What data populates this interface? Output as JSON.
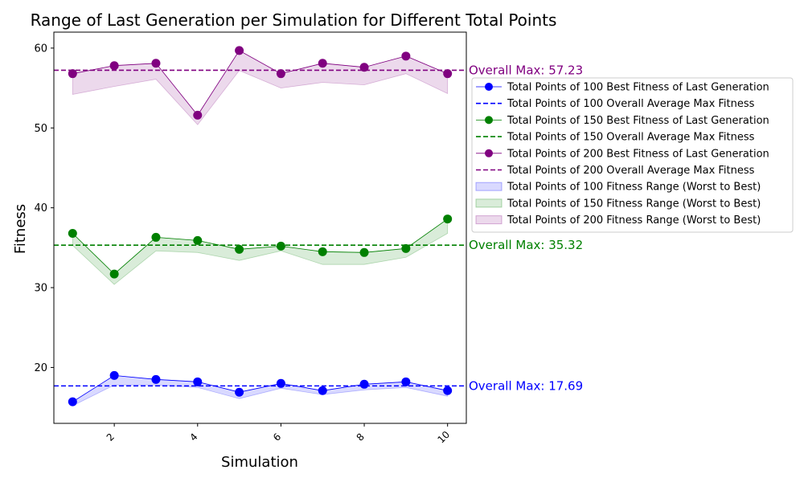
{
  "chart_data": {
    "type": "line",
    "title": "Range of Last Generation per Simulation for Different Total Points",
    "xlabel": "Simulation",
    "ylabel": "Fitness",
    "xlim": [
      0.55,
      10.45
    ],
    "ylim": [
      13.0,
      62.0
    ],
    "xticks": [
      2,
      4,
      6,
      8,
      10
    ],
    "yticks": [
      20,
      30,
      40,
      50,
      60
    ],
    "x": [
      1,
      2,
      3,
      4,
      5,
      6,
      7,
      8,
      9,
      10
    ],
    "grid": false,
    "legend_position": "right, outside plot",
    "series": [
      {
        "name": "Total Points of 100 Best Fitness of Last Generation",
        "color": "#0000ff",
        "best": [
          15.7,
          19.0,
          18.5,
          18.2,
          16.9,
          18.0,
          17.1,
          17.9,
          18.2,
          17.1
        ],
        "worst": [
          15.2,
          17.8,
          17.8,
          17.5,
          16.1,
          17.4,
          16.6,
          17.2,
          17.5,
          16.4
        ],
        "avg_label": "Total Points of 100 Overall Average Max Fitness",
        "avg": 17.69,
        "range_label": "Total Points of 100 Fitness Range (Worst to Best)",
        "annotation": "Overall Max: 17.69"
      },
      {
        "name": "Total Points of 150 Best Fitness of Last Generation",
        "color": "#008000",
        "best": [
          36.8,
          31.7,
          36.3,
          35.9,
          34.8,
          35.2,
          34.5,
          34.4,
          34.9,
          38.6
        ],
        "worst": [
          35.3,
          30.4,
          34.6,
          34.4,
          33.4,
          34.6,
          32.9,
          32.9,
          33.8,
          36.8
        ],
        "avg_label": "Total Points of 150 Overall Average Max Fitness",
        "avg": 35.32,
        "range_label": "Total Points of 150 Fitness Range (Worst to Best)",
        "annotation": "Overall Max: 35.32"
      },
      {
        "name": "Total Points of 200 Best Fitness of Last Generation",
        "color": "#800080",
        "best": [
          56.8,
          57.8,
          58.1,
          51.6,
          59.7,
          56.8,
          58.1,
          57.6,
          59.0,
          56.8
        ],
        "worst": [
          54.2,
          55.2,
          56.1,
          50.4,
          57.2,
          55.0,
          55.7,
          55.4,
          56.8,
          54.3
        ],
        "avg_label": "Total Points of 200 Overall Average Max Fitness",
        "avg": 57.23,
        "range_label": "Total Points of 200 Fitness Range (Worst to Best)",
        "annotation": "Overall Max: 57.23"
      }
    ]
  }
}
